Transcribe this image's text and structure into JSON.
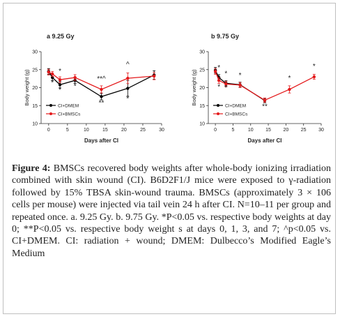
{
  "chart_data": [
    {
      "type": "line",
      "panel_label": "a",
      "title": "9.25 Gy",
      "xlabel": "Days after CI",
      "ylabel": "Body weight (g)",
      "xlim": [
        -2,
        30
      ],
      "ylim": [
        10,
        30
      ],
      "xticks": [
        0,
        5,
        10,
        15,
        20,
        25,
        30
      ],
      "yticks": [
        10,
        15,
        20,
        25,
        30
      ],
      "legend_position": "bottom-left",
      "series": [
        {
          "name": "CI+DMEM",
          "color": "#000000",
          "x": [
            0,
            1,
            3,
            7,
            14,
            21,
            28
          ],
          "y": [
            24.5,
            22.8,
            20.8,
            22.0,
            17.5,
            19.8,
            23.5
          ],
          "err": [
            0.8,
            0.8,
            0.9,
            0.8,
            0.9,
            2.2,
            1.2
          ]
        },
        {
          "name": "CI+BMSCs",
          "color": "#e41a1c",
          "x": [
            0,
            1,
            3,
            7,
            14,
            21,
            28
          ],
          "y": [
            24.3,
            23.8,
            22.2,
            22.8,
            19.5,
            22.6,
            23.2
          ],
          "err": [
            0.8,
            0.7,
            0.8,
            0.8,
            1.0,
            1.5,
            1.0
          ]
        }
      ],
      "annotations": [
        {
          "x": 1,
          "y": 20.8,
          "text": "*"
        },
        {
          "x": 3,
          "y": 24.0,
          "text": "*"
        },
        {
          "x": 3,
          "y": 18.7,
          "text": "*"
        },
        {
          "x": 7,
          "y": 19.8,
          "text": "*"
        },
        {
          "x": 14,
          "y": 21.8,
          "text": "**^"
        },
        {
          "x": 14,
          "y": 15.1,
          "text": "**"
        },
        {
          "x": 21,
          "y": 25.8,
          "text": "^"
        },
        {
          "x": 21,
          "y": 16.3,
          "text": "*"
        }
      ]
    },
    {
      "type": "line",
      "panel_label": "b",
      "title": "9.75 Gy",
      "xlabel": "Days after CI",
      "ylabel": "Body weight (g)",
      "xlim": [
        -2,
        30
      ],
      "ylim": [
        10,
        30
      ],
      "xticks": [
        0,
        5,
        10,
        15,
        20,
        25,
        30
      ],
      "yticks": [
        10,
        15,
        20,
        25,
        30
      ],
      "legend_position": "bottom-left",
      "series": [
        {
          "name": "CI+DMEM",
          "color": "#000000",
          "x": [
            0,
            1,
            3,
            7,
            14
          ],
          "y": [
            24.8,
            22.8,
            21.2,
            20.8,
            16.4
          ],
          "err": [
            0.8,
            0.8,
            0.7,
            0.7,
            0.6
          ]
        },
        {
          "name": "CI+BMSCs",
          "color": "#e41a1c",
          "x": [
            0,
            1,
            3,
            7,
            14,
            21,
            28
          ],
          "y": [
            24.5,
            22.0,
            21.0,
            20.7,
            16.5,
            19.5,
            23.0
          ],
          "err": [
            0.8,
            0.8,
            0.7,
            0.7,
            0.6,
            1.0,
            0.7
          ]
        }
      ],
      "annotations": [
        {
          "x": 1,
          "y": 25.0,
          "text": "*"
        },
        {
          "x": 1,
          "y": 19.6,
          "text": "*"
        },
        {
          "x": 3,
          "y": 23.3,
          "text": "*"
        },
        {
          "x": 3,
          "y": 19.3,
          "text": "*"
        },
        {
          "x": 7,
          "y": 22.8,
          "text": "*"
        },
        {
          "x": 14,
          "y": 14.2,
          "text": "**"
        },
        {
          "x": 21,
          "y": 22.0,
          "text": "*"
        },
        {
          "x": 28,
          "y": 25.3,
          "text": "*"
        }
      ]
    }
  ],
  "caption": {
    "label": "Figure 4:",
    "text": " BMSCs recovered body weights after whole-body ionizing irradiation combined with skin wound (CI). B6D2F1/J mice were exposed to γ-radiation followed by 15% TBSA skin-wound trauma. BMSCs (approximately 3 × 106 cells per mouse) were injected via tail vein 24 h after CI. N=10–11 per group and repeated once. a. 9.25 Gy. b. 9.75 Gy. *P<0.05 vs. respective body weights at day 0; **P<0.05 vs. respective body weight s at days 0, 1, 3, and 7; ^p<0.05 vs. CI+DMEM. CI: radiation + wound; DMEM: Dulbecco’s Modified Eagle’s Medium"
  }
}
